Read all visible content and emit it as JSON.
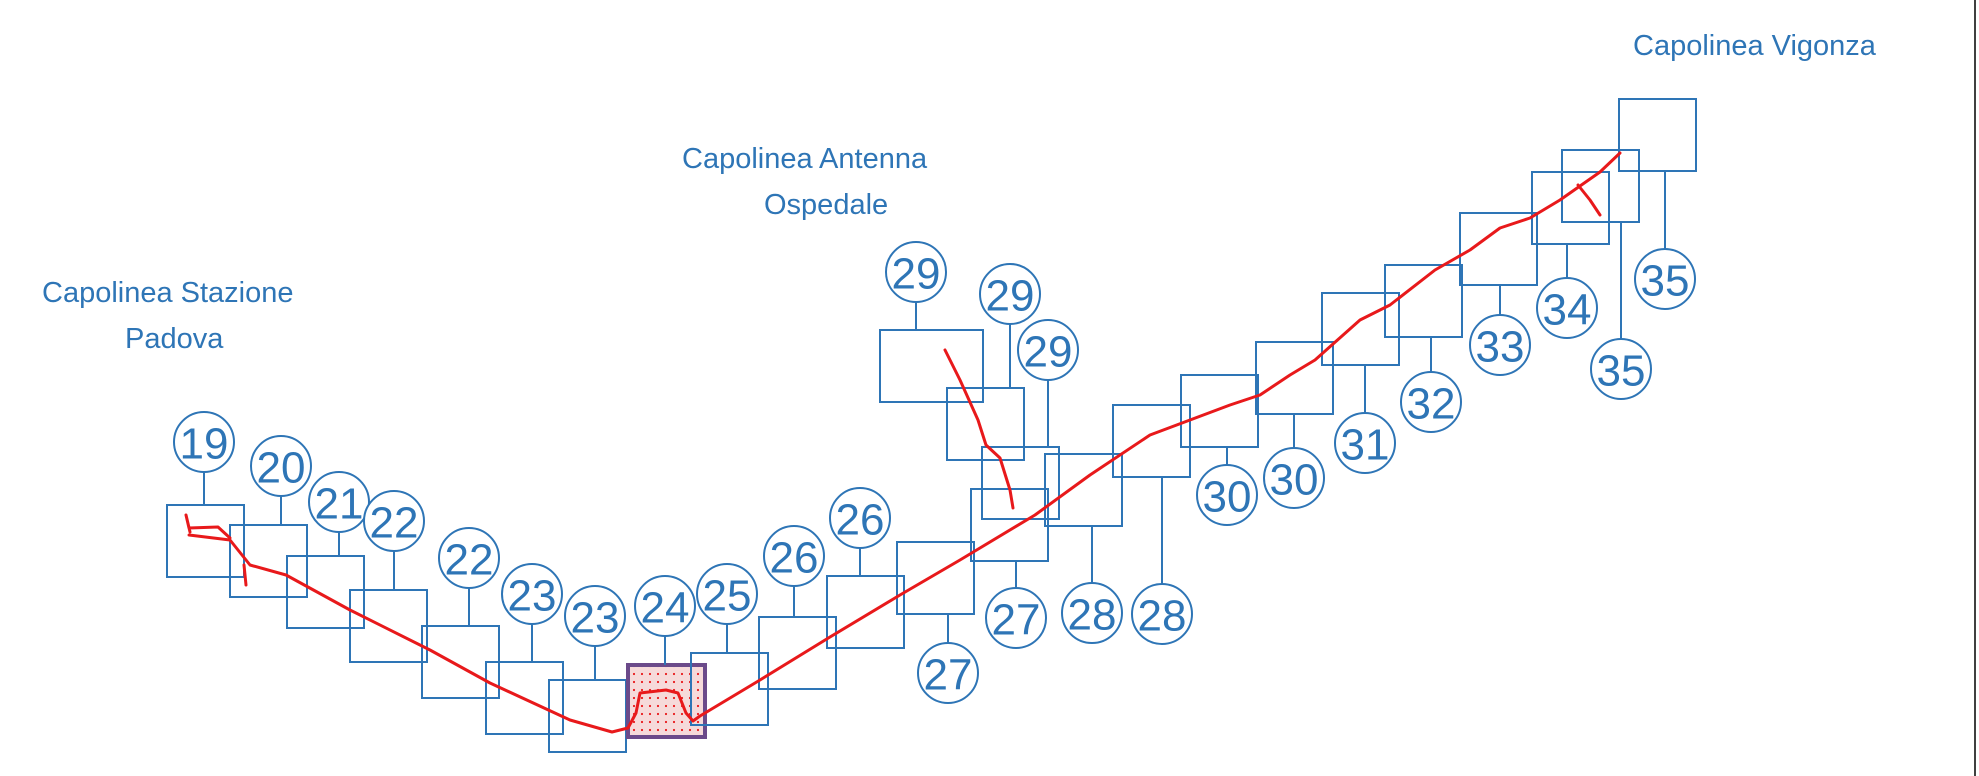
{
  "labels": {
    "stazione_line1": "Capolinea Stazione",
    "stazione_line2": "Padova",
    "antenna_line1": "Capolinea Antenna",
    "antenna_line2": "Ospedale",
    "vigonza": "Capolinea Vigonza"
  },
  "colors": {
    "tile_outline": "#2e75b6",
    "route": "#e8191b",
    "highlight_fill": "#f6dada",
    "highlight_border": "#6b4a8a"
  },
  "sheets": [
    {
      "number": "19"
    },
    {
      "number": "20"
    },
    {
      "number": "21"
    },
    {
      "number": "22"
    },
    {
      "number": "22"
    },
    {
      "number": "23"
    },
    {
      "number": "23"
    },
    {
      "number": "24"
    },
    {
      "number": "25"
    },
    {
      "number": "26"
    },
    {
      "number": "26"
    },
    {
      "number": "27"
    },
    {
      "number": "27"
    },
    {
      "number": "28"
    },
    {
      "number": "28"
    },
    {
      "number": "29"
    },
    {
      "number": "29"
    },
    {
      "number": "29"
    },
    {
      "number": "30"
    },
    {
      "number": "30"
    },
    {
      "number": "31"
    },
    {
      "number": "32"
    },
    {
      "number": "33"
    },
    {
      "number": "34"
    },
    {
      "number": "35"
    },
    {
      "number": "35"
    }
  ],
  "highlighted_sheet": "24"
}
